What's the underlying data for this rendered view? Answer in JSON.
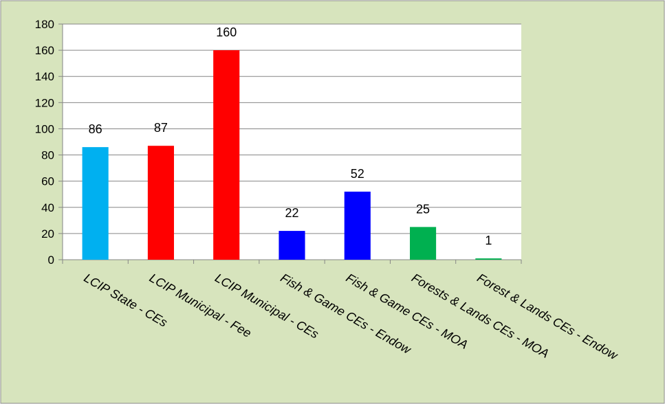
{
  "chart_data": {
    "type": "bar",
    "categories": [
      "LCIP State - CEs",
      "LCIP Municipal - Fee",
      "LCIP Municipal - CEs",
      "Fish & Game CEs - Endow",
      "Fish & Game CEs - MOA",
      "Forests & Lands CEs - MOA",
      "Forest & Lands CEs - Endow"
    ],
    "values": [
      86,
      87,
      160,
      22,
      52,
      25,
      1
    ],
    "bar_colors": [
      "#00b0f0",
      "#ff0000",
      "#ff0000",
      "#0000ff",
      "#0000ff",
      "#00b050",
      "#00b050"
    ],
    "data_labels": [
      "86",
      "87",
      "160",
      "22",
      "52",
      "25",
      "1"
    ],
    "y_ticks": [
      "0",
      "20",
      "40",
      "60",
      "80",
      "100",
      "120",
      "140",
      "160",
      "180"
    ],
    "ylim": [
      0,
      180
    ],
    "y_step": 20,
    "grid": true,
    "legend": "none",
    "title": "",
    "xlabel": "",
    "ylabel": "",
    "colors": {
      "chart_background": "#d7e4bd",
      "plot_background": "#ffffff",
      "border": "#8c8c8c",
      "gridline": "#868686"
    }
  }
}
